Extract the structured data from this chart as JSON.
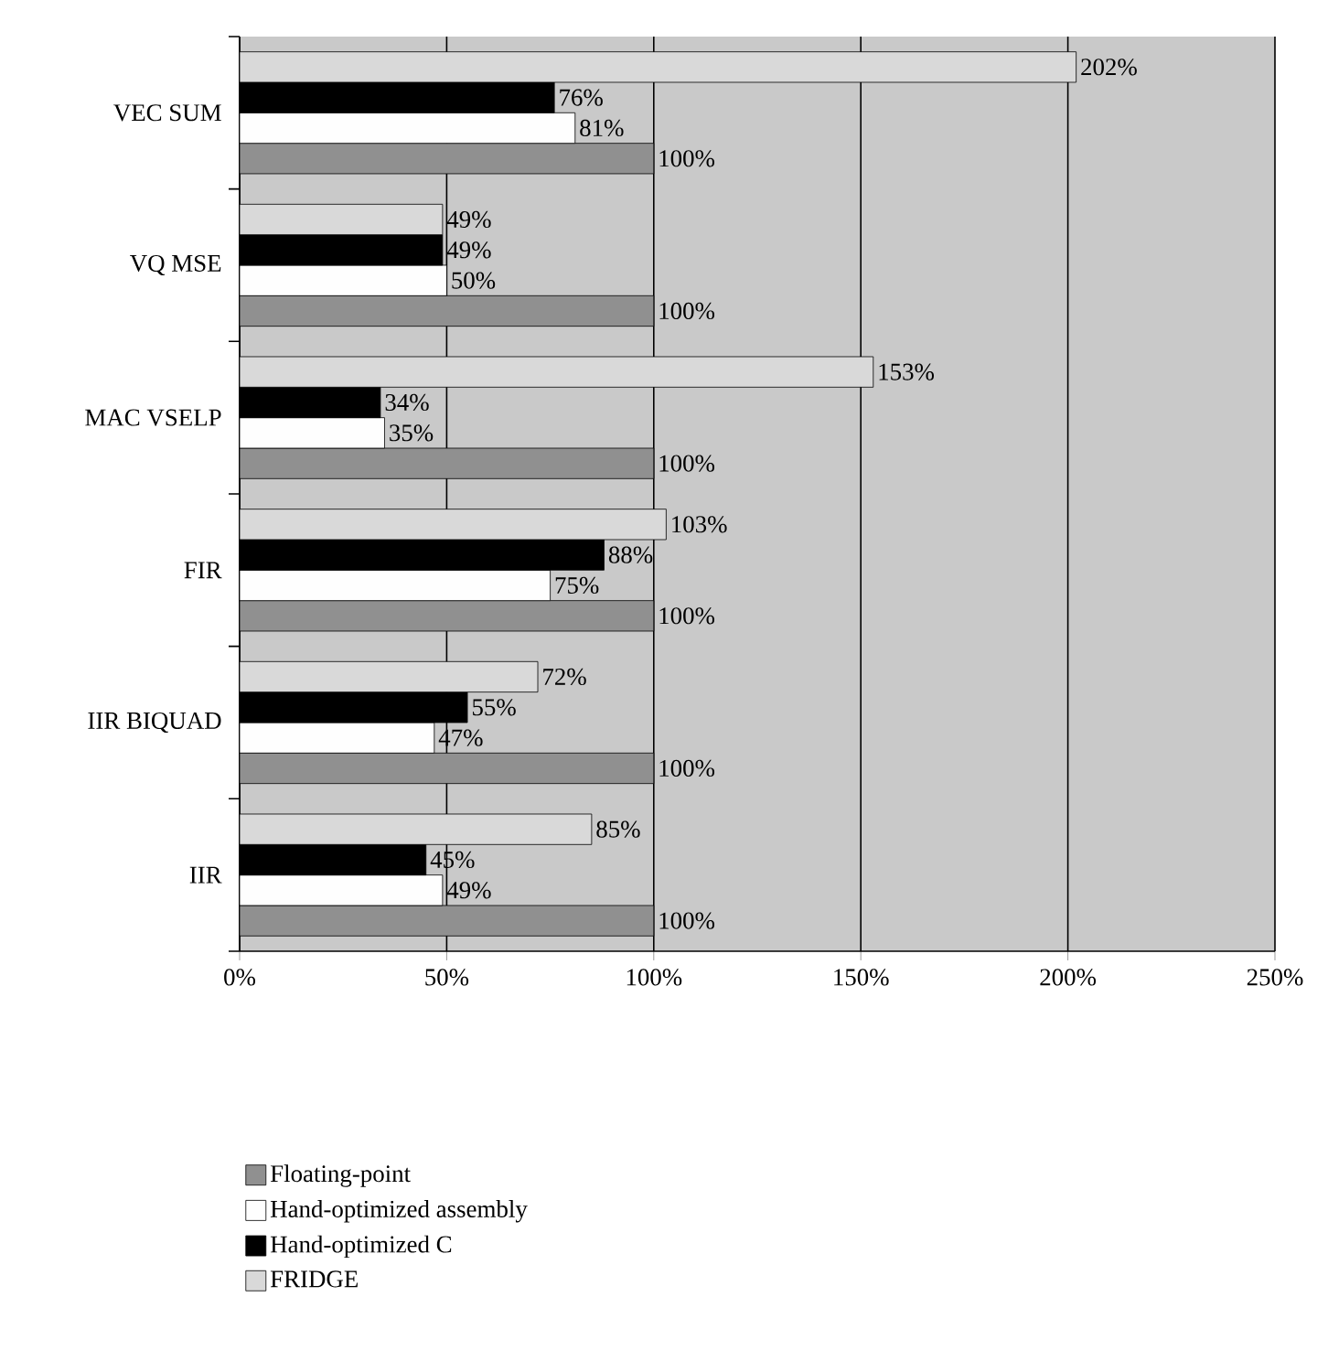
{
  "chart_data": {
    "type": "bar",
    "orientation": "horizontal",
    "categories": [
      "VEC SUM",
      "VQ MSE",
      "MAC VSELP",
      "FIR",
      "IIR BIQUAD",
      "IIR"
    ],
    "series": [
      {
        "name": "Floating-point",
        "color": "#909090",
        "values": [
          100,
          100,
          100,
          100,
          100,
          100
        ],
        "value_labels": [
          "100%",
          "100%",
          "100%",
          "100%",
          "100%",
          "100%"
        ]
      },
      {
        "name": "Hand-optimized assembly",
        "color": "#fefefe",
        "values": [
          81,
          50,
          35,
          75,
          47,
          49
        ],
        "value_labels": [
          "81%",
          "50%",
          "35%",
          "75%",
          "47%",
          "49%"
        ]
      },
      {
        "name": "Hand-optimized C",
        "color": "#000000",
        "values": [
          76,
          49,
          34,
          88,
          55,
          45
        ],
        "value_labels": [
          "76%",
          "49%",
          "34%",
          "88%",
          "55%",
          "45%"
        ]
      },
      {
        "name": "FRIDGE",
        "color": "#d9d9d9",
        "values": [
          202,
          49,
          153,
          103,
          72,
          85
        ],
        "value_labels": [
          "202%",
          "49%",
          "153%",
          "103%",
          "72%",
          "85%"
        ]
      }
    ],
    "xlim": [
      0,
      250
    ],
    "xticks": [
      {
        "value": 0,
        "label": "0%"
      },
      {
        "value": 50,
        "label": "50%"
      },
      {
        "value": 100,
        "label": "100%"
      },
      {
        "value": 150,
        "label": "150%"
      },
      {
        "value": 200,
        "label": "200%"
      },
      {
        "value": 250,
        "label": "250%"
      }
    ],
    "grid": "x",
    "legend": "bottom"
  }
}
